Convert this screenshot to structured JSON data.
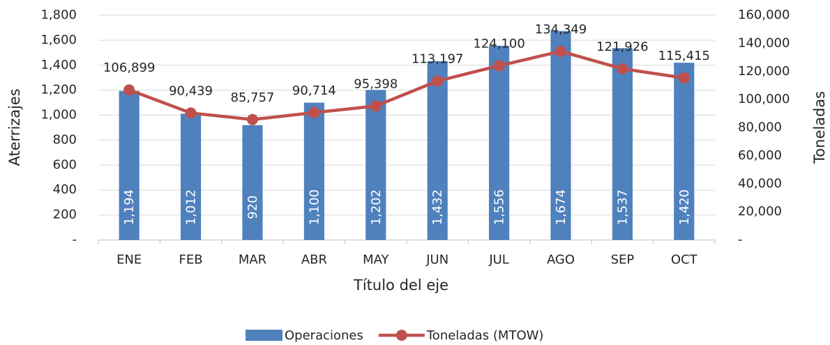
{
  "chart_data": {
    "type": "combo",
    "x_label": "Título del eje",
    "y_label": "Aterrizajes",
    "y2_label": "Toneladas",
    "categories": [
      "ENE",
      "FEB",
      "MAR",
      "ABR",
      "MAY",
      "JUN",
      "JUL",
      "AGO",
      "SEP",
      "OCT"
    ],
    "series": [
      {
        "name": "Operaciones",
        "type": "bar",
        "color": "#4f81bd",
        "values": [
          1194,
          1012,
          920,
          1100,
          1202,
          1432,
          1556,
          1674,
          1537,
          1420
        ],
        "value_labels": [
          "1,194",
          "1,012",
          "920",
          "1,100",
          "1,202",
          "1,432",
          "1,556",
          "1,674",
          "1,537",
          "1,420"
        ]
      },
      {
        "name": "Toneladas (MTOW)",
        "type": "line",
        "axis": "y2",
        "color": "#c0504d",
        "values": [
          106899,
          90439,
          85757,
          90714,
          95398,
          113197,
          124100,
          134349,
          121926,
          115415
        ],
        "value_labels": [
          "106,899",
          "90,439",
          "85,757",
          "90,714",
          "95,398",
          "113,197",
          "124,100",
          "134,349",
          "121,926",
          "115,415"
        ]
      }
    ],
    "ylim": [
      0,
      1800
    ],
    "yticks": [
      {
        "value": 0,
        "label": "-"
      },
      200,
      400,
      600,
      800,
      {
        "value": 1000,
        "label": "1,000"
      },
      {
        "value": 1200,
        "label": "1,200"
      },
      {
        "value": 1400,
        "label": "1,400"
      },
      {
        "value": 1600,
        "label": "1,600"
      },
      {
        "value": 1800,
        "label": "1,800"
      }
    ],
    "y2lim": [
      0,
      160000
    ],
    "y2ticks": [
      {
        "value": 0,
        "label": "-"
      },
      {
        "value": 20000,
        "label": "20,000"
      },
      {
        "value": 40000,
        "label": "40,000"
      },
      {
        "value": 60000,
        "label": "60,000"
      },
      {
        "value": 80000,
        "label": "80,000"
      },
      {
        "value": 100000,
        "label": "100,000"
      },
      {
        "value": 120000,
        "label": "120,000"
      },
      {
        "value": 140000,
        "label": "140,000"
      },
      {
        "value": 160000,
        "label": "160,000"
      }
    ],
    "grid": true,
    "legend": "bottom"
  }
}
